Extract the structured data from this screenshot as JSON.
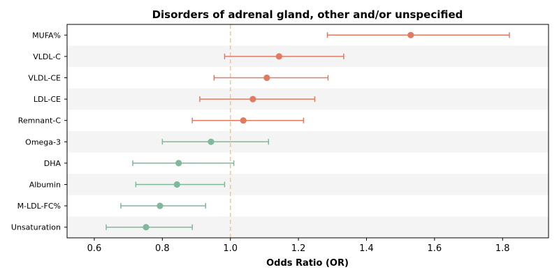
{
  "chart_data": {
    "type": "forest",
    "title": "Disorders of adrenal gland, other and/or unspecified",
    "xlabel": "Odds Ratio (OR)",
    "ylabel": "",
    "xlim": [
      0.52,
      1.935
    ],
    "xticks": [
      "0.6",
      "0.8",
      "1.0",
      "1.2",
      "1.4",
      "1.6",
      "1.8"
    ],
    "reference_line": 1.0,
    "colors": {
      "positive": "#e07b62",
      "negative": "#7fb89a",
      "reference": "#f5c98e",
      "band": "#f4f4f4",
      "axis": "#000000"
    },
    "rows": [
      {
        "label": "MUFA%",
        "or": 1.53,
        "lower": 1.285,
        "upper": 1.82,
        "group": "positive"
      },
      {
        "label": "VLDL-C",
        "or": 1.143,
        "lower": 0.983,
        "upper": 1.333,
        "group": "positive"
      },
      {
        "label": "VLDL-CE",
        "or": 1.107,
        "lower": 0.952,
        "upper": 1.287,
        "group": "positive"
      },
      {
        "label": "LDL-CE",
        "or": 1.066,
        "lower": 0.91,
        "upper": 1.248,
        "group": "positive"
      },
      {
        "label": "Remnant-C",
        "or": 1.038,
        "lower": 0.888,
        "upper": 1.215,
        "group": "positive"
      },
      {
        "label": "Omega-3",
        "or": 0.943,
        "lower": 0.8,
        "upper": 1.112,
        "group": "negative"
      },
      {
        "label": "DHA",
        "or": 0.848,
        "lower": 0.713,
        "upper": 1.01,
        "group": "negative"
      },
      {
        "label": "Albumin",
        "or": 0.843,
        "lower": 0.722,
        "upper": 0.983,
        "group": "negative"
      },
      {
        "label": "M-LDL-FC%",
        "or": 0.793,
        "lower": 0.678,
        "upper": 0.927,
        "group": "negative"
      },
      {
        "label": "Unsaturation",
        "or": 0.752,
        "lower": 0.635,
        "upper": 0.888,
        "group": "negative"
      }
    ]
  }
}
